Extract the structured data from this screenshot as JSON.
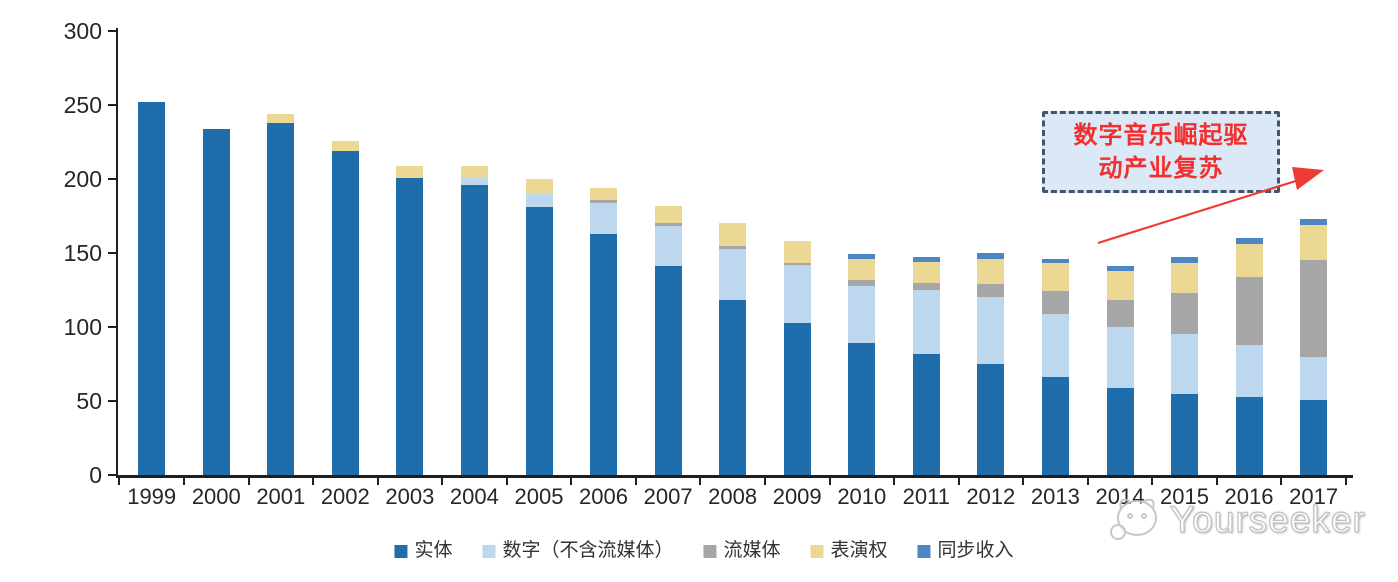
{
  "page": {
    "background": "#ffffff"
  },
  "annotation": {
    "line1": "数字音乐崛起驱",
    "line2": "动产业复苏",
    "fill": "#DBE9F6",
    "border_color": "#44546A",
    "text_color": "#F22E2E",
    "arrow_color": "#EE3B33"
  },
  "watermark": {
    "brand": "Yourseeker",
    "logo_icon": "yourseeker-cat-logo"
  },
  "chart_data": {
    "type": "bar",
    "stacked": true,
    "title": "",
    "xlabel": "",
    "ylabel": "",
    "ylim": [
      0,
      300
    ],
    "yticks": [
      0,
      50,
      100,
      150,
      200,
      250,
      300
    ],
    "grid": false,
    "legend_position": "bottom",
    "categories": [
      "1999",
      "2000",
      "2001",
      "2002",
      "2003",
      "2004",
      "2005",
      "2006",
      "2007",
      "2008",
      "2009",
      "2010",
      "2011",
      "2012",
      "2013",
      "2014",
      "2015",
      "2016",
      "2017"
    ],
    "series": [
      {
        "name": "实体",
        "color": "#1F6DAB",
        "values": [
          252,
          234,
          238,
          219,
          201,
          196,
          181,
          163,
          141,
          118,
          103,
          89,
          82,
          75,
          66,
          59,
          55,
          53,
          51
        ]
      },
      {
        "name": "数字（不含流媒体）",
        "color": "#BDD7EE",
        "values": [
          0,
          0,
          0,
          0,
          0,
          5,
          9,
          21,
          27,
          35,
          39,
          39,
          43,
          45,
          43,
          41,
          40,
          35,
          29
        ]
      },
      {
        "name": "流媒体",
        "color": "#A6A6A6",
        "values": [
          0,
          0,
          0,
          0,
          0,
          0,
          0,
          2,
          2,
          2,
          1,
          4,
          5,
          9,
          15,
          18,
          28,
          46,
          65
        ]
      },
      {
        "name": "表演权",
        "color": "#EBD894",
        "values": [
          0,
          0,
          6,
          7,
          8,
          8,
          10,
          8,
          12,
          15,
          15,
          14,
          14,
          17,
          19,
          20,
          20,
          22,
          24
        ]
      },
      {
        "name": "同步收入",
        "color": "#4E86C4",
        "values": [
          0,
          0,
          0,
          0,
          0,
          0,
          0,
          0,
          0,
          0,
          0,
          3,
          3,
          4,
          3,
          3,
          4,
          4,
          4
        ]
      }
    ],
    "totals": [
      252,
      234,
      244,
      226,
      209,
      209,
      200,
      194,
      182,
      170,
      158,
      149,
      147,
      150,
      146,
      141,
      147,
      160,
      173
    ]
  }
}
